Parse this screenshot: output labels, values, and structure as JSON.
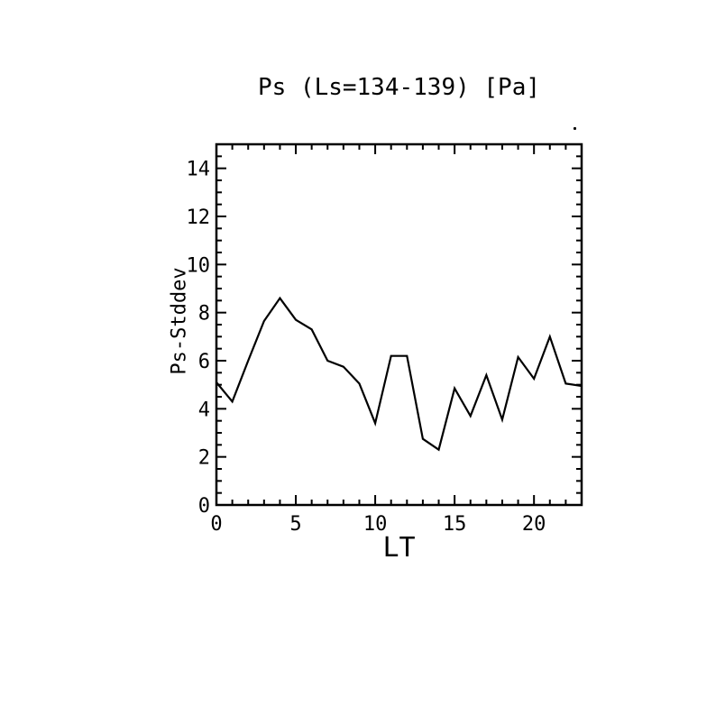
{
  "figure": {
    "background": "#ffffff",
    "foreground": "#000000"
  },
  "chart_data": {
    "type": "line",
    "title": "Ps (Ls=134-139) [Pa]",
    "xlabel": "LT",
    "ylabel": "Ps-Stddev",
    "x": [
      0,
      1,
      2,
      3,
      4,
      5,
      6,
      7,
      8,
      9,
      10,
      11,
      12,
      13,
      14,
      15,
      16,
      17,
      18,
      19,
      20,
      21,
      22,
      23
    ],
    "y": [
      5.1,
      4.3,
      6.0,
      7.65,
      8.6,
      7.7,
      7.3,
      6.0,
      5.75,
      5.05,
      3.4,
      6.2,
      6.2,
      2.75,
      2.3,
      4.85,
      3.7,
      5.4,
      3.55,
      6.15,
      5.25,
      7.0,
      5.05,
      4.95
    ],
    "xlim": [
      0,
      23
    ],
    "ylim": [
      0,
      15
    ],
    "xticks_major": [
      0,
      5,
      10,
      15,
      20
    ],
    "xtick_minor_step": 1,
    "yticks_major": [
      0,
      2,
      4,
      6,
      8,
      10,
      12,
      14
    ],
    "ytick_minor_step": 0.5,
    "grid": false,
    "legend": false,
    "line_color": "#000000",
    "frame_color": "#000000"
  }
}
